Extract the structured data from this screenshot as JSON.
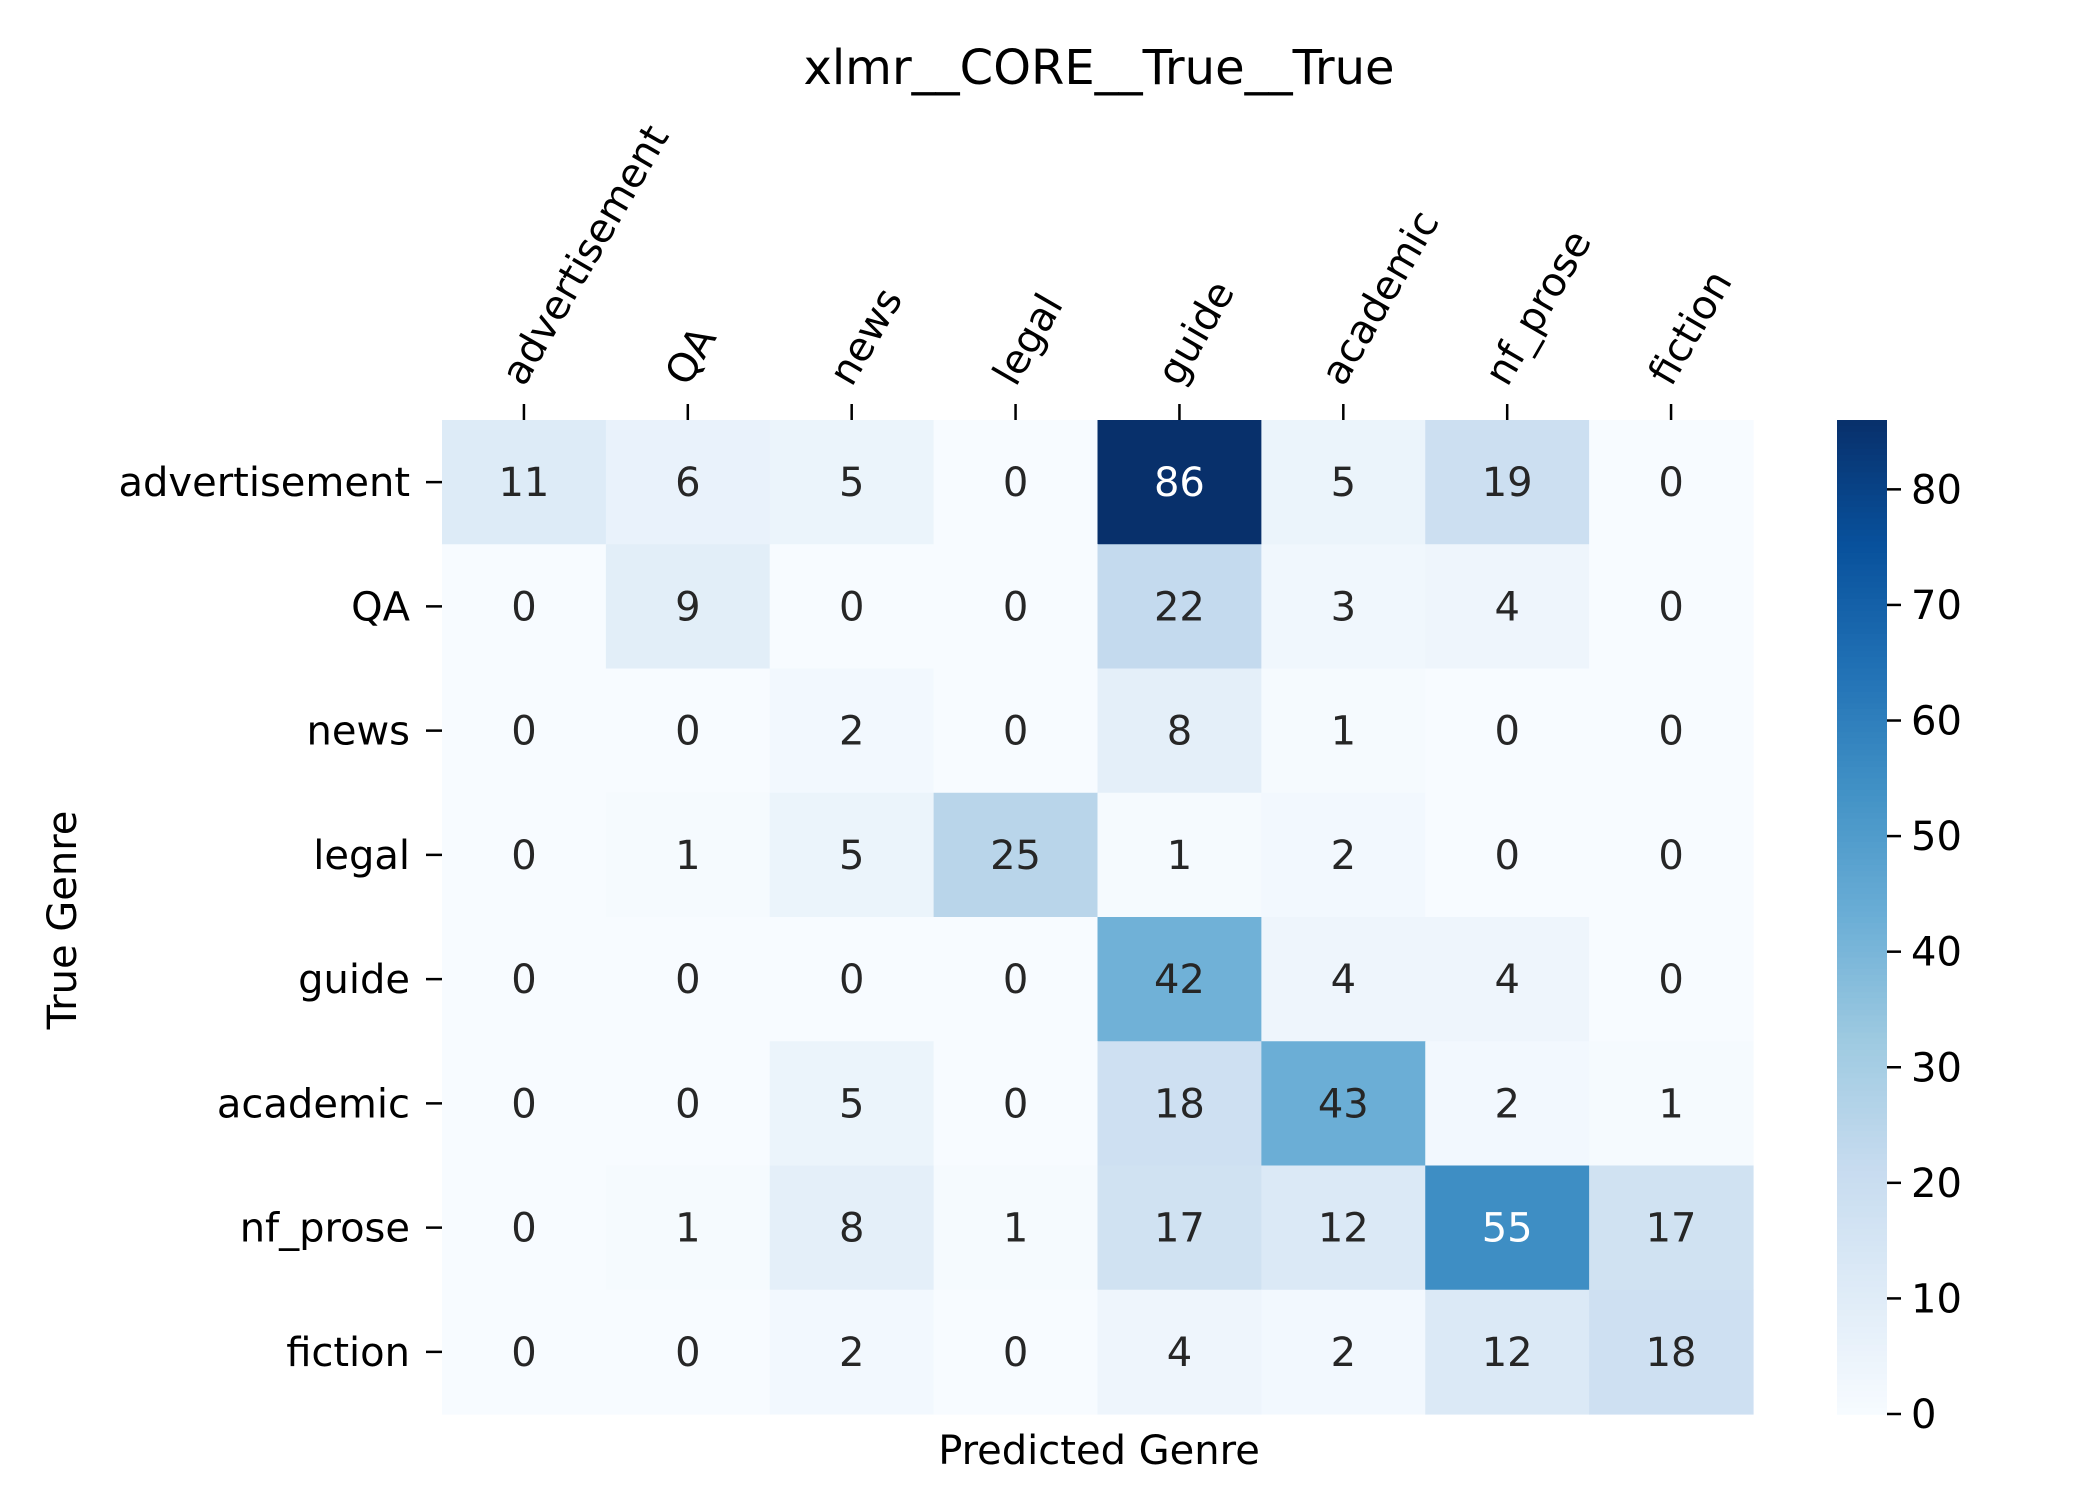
{
  "chart_data": {
    "type": "heatmap",
    "title": "xlmr__CORE__True__True",
    "xlabel": "Predicted Genre",
    "ylabel": "True Genre",
    "x_categories": [
      "advertisement",
      "QA",
      "news",
      "legal",
      "guide",
      "academic",
      "nf_prose",
      "fiction"
    ],
    "y_categories": [
      "advertisement",
      "QA",
      "news",
      "legal",
      "guide",
      "academic",
      "nf_prose",
      "fiction"
    ],
    "values": [
      [
        11,
        6,
        5,
        0,
        86,
        5,
        19,
        0
      ],
      [
        0,
        9,
        0,
        0,
        22,
        3,
        4,
        0
      ],
      [
        0,
        0,
        2,
        0,
        8,
        1,
        0,
        0
      ],
      [
        0,
        1,
        5,
        25,
        1,
        2,
        0,
        0
      ],
      [
        0,
        0,
        0,
        0,
        42,
        4,
        4,
        0
      ],
      [
        0,
        0,
        5,
        0,
        18,
        43,
        2,
        1
      ],
      [
        0,
        1,
        8,
        1,
        17,
        12,
        55,
        17
      ],
      [
        0,
        0,
        2,
        0,
        4,
        2,
        12,
        18
      ]
    ],
    "colormap": "Blues",
    "colorbar": {
      "min": 0,
      "max": 86,
      "ticks": [
        0,
        10,
        20,
        30,
        40,
        50,
        60,
        70,
        80
      ]
    },
    "x_axis_position": "top",
    "grid": false
  }
}
